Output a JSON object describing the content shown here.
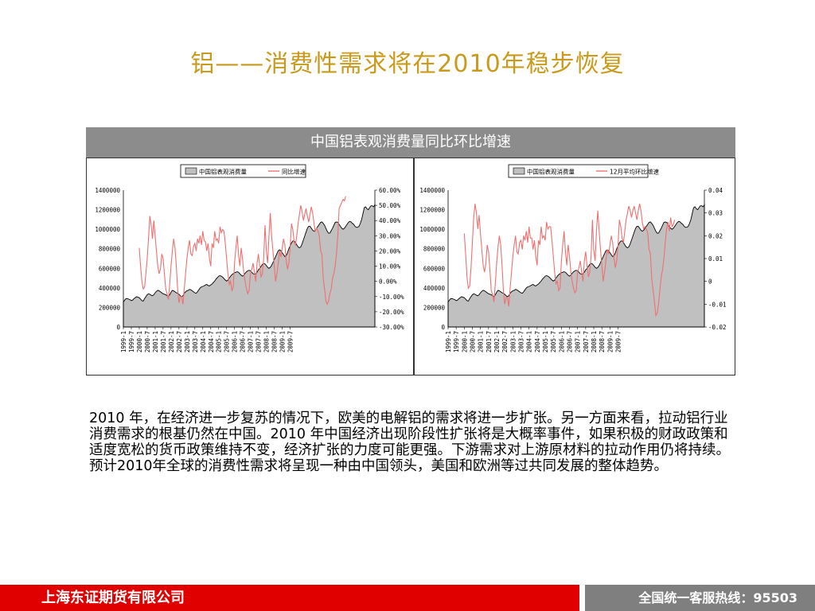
{
  "slide": {
    "title": "铝——消费性需求将在2010年稳步恢复",
    "panel_header": "中国铝表观消费量同比环比增速",
    "paragraph": " 2010 年，在经济进一步复苏的情况下，欧美的电解铝的需求将进一步扩张。另一方面来看，拉动铝行业消费需求的根基仍然在中国。2010 年中国经济出现阶段性扩张将是大概率事件，如果积极的财政政策和适度宽松的货币政策维持不变，经济扩张的力度可能更强。下游需求对上游原材料的拉动作用仍将持续。预计2010年全球的消费性需求将呈现一种由中国领头，美国和欧洲等过共同发展的整体趋势。",
    "footer_company": "上海东证期货有限公司",
    "footer_hotline": "全国统一客服热线：95503"
  },
  "colors": {
    "title": "#c99a1b",
    "header_bg": "#8c8c8c",
    "area_fill": "#c0c0c0",
    "line": "#f07070",
    "footer_red": "#e00000",
    "footer_gray": "#7f7f7f"
  },
  "chart_data": [
    {
      "type": "area",
      "legend": [
        "中国铝表观消费量",
        "同比增速"
      ],
      "legend_position": "top-center",
      "x_start": "1999-1",
      "x_ticks": [
        "1999-1",
        "1999-7",
        "2000-1",
        "2000-7",
        "2001-1",
        "2001-7",
        "2002-1",
        "2002-7",
        "2003-1",
        "2003-7",
        "2004-1",
        "2004-7",
        "2005-1",
        "2005-7",
        "2006-1",
        "2006-7",
        "2007-1",
        "2007-7",
        "2008-1",
        "2008-7",
        "2009-1",
        "2009-7"
      ],
      "y_left": {
        "min": 0,
        "max": 1400000,
        "ticks": [
          "0",
          "200000",
          "400000",
          "600000",
          "800000",
          "1000000",
          "1200000",
          "1400000"
        ]
      },
      "y_right": {
        "min": -0.3,
        "max": 0.6,
        "ticks": [
          "-30.00%",
          "-20.00%",
          "-10.00%",
          "0.00%",
          "10.00%",
          "20.00%",
          "30.00%",
          "40.00%",
          "50.00%",
          "60.00%"
        ]
      },
      "series": [
        {
          "name": "中国铝表观消费量",
          "axis": "left",
          "kind": "area",
          "values": [
            255000,
            275000,
            290000,
            290000,
            285000,
            280000,
            270000,
            275000,
            290000,
            300000,
            310000,
            305000,
            300000,
            285000,
            270000,
            265000,
            290000,
            310000,
            330000,
            340000,
            335000,
            325000,
            320000,
            330000,
            350000,
            365000,
            375000,
            370000,
            360000,
            350000,
            340000,
            335000,
            330000,
            320000,
            310000,
            330000,
            355000,
            375000,
            370000,
            360000,
            350000,
            345000,
            335000,
            320000,
            310000,
            320000,
            345000,
            360000,
            370000,
            375000,
            385000,
            380000,
            370000,
            360000,
            350000,
            345000,
            360000,
            380000,
            400000,
            410000,
            415000,
            420000,
            430000,
            435000,
            425000,
            420000,
            430000,
            440000,
            455000,
            470000,
            490000,
            505000,
            520000,
            525000,
            520000,
            510000,
            495000,
            480000,
            470000,
            480000,
            500000,
            520000,
            535000,
            545000,
            555000,
            560000,
            565000,
            560000,
            545000,
            530000,
            520000,
            530000,
            550000,
            565000,
            575000,
            580000,
            575000,
            560000,
            545000,
            540000,
            545000,
            560000,
            585000,
            600000,
            620000,
            640000,
            650000,
            645000,
            630000,
            610000,
            600000,
            610000,
            630000,
            660000,
            690000,
            720000,
            750000,
            780000,
            790000,
            780000,
            760000,
            740000,
            720000,
            730000,
            760000,
            800000,
            830000,
            860000,
            880000,
            880000,
            865000,
            840000,
            820000,
            810000,
            820000,
            850000,
            890000,
            930000,
            970000,
            1010000,
            1030000,
            1030000,
            1010000,
            990000,
            980000,
            990000,
            1010000,
            1030000,
            1050000,
            1070000,
            1075000,
            1060000,
            1040000,
            1010000,
            980000,
            960000,
            960000,
            985000,
            1010000,
            1040000,
            1070000,
            1075000,
            1070000,
            1050000,
            1030000,
            1010000,
            1000000,
            1010000,
            1030000,
            1050000,
            1070000,
            1080000,
            1075000,
            1060000,
            1050000,
            1030000,
            1020000,
            1020000,
            1030000,
            1060000,
            1100000,
            1160000,
            1220000,
            1230000,
            1210000,
            1200000,
            1220000,
            1240000,
            1240000,
            1230000,
            1250000
          ]
        },
        {
          "name": "同比增速",
          "axis": "right",
          "kind": "line",
          "x_offset": 12,
          "values": [
            0.22,
            0.1,
            0.0,
            -0.05,
            -0.04,
            0.05,
            0.15,
            0.28,
            0.43,
            0.37,
            0.28,
            0.4,
            0.3,
            0.2,
            0.1,
            0.05,
            0.08,
            0.18,
            0.15,
            0.05,
            -0.05,
            -0.08,
            -0.12,
            -0.02,
            0.1,
            0.2,
            0.28,
            0.22,
            0.1,
            -0.05,
            -0.14,
            -0.1,
            -0.1,
            -0.15,
            -0.05,
            0.05,
            0.15,
            0.22,
            0.27,
            0.18,
            0.17,
            0.23,
            0.25,
            0.2,
            0.28,
            0.25,
            0.3,
            0.24,
            0.33,
            0.27,
            0.26,
            0.2,
            0.25,
            0.15,
            0.1,
            0.25,
            0.22,
            0.33,
            0.27,
            0.28,
            0.25,
            0.36,
            0.32,
            0.34,
            0.33,
            0.25,
            0.15,
            0.05,
            -0.02,
            0.0,
            -0.06,
            -0.04,
            0.12,
            0.22,
            0.3,
            0.18,
            0.1,
            0.22,
            0.15,
            0.05,
            0.0,
            -0.05,
            -0.08,
            -0.06,
            0.05,
            0.08,
            0.12,
            0.06,
            0.0,
            0.12,
            0.18,
            0.1,
            0.03,
            0.05,
            0.15,
            0.37,
            0.2,
            0.12,
            0.3,
            0.45,
            0.3,
            0.2,
            0.1,
            0.0,
            0.05,
            0.12,
            0.2,
            0.16,
            0.22,
            0.28,
            0.24,
            0.14,
            0.08,
            0.12,
            0.22,
            0.38,
            0.34,
            0.26,
            0.24,
            0.3,
            0.38,
            0.44,
            0.5,
            0.46,
            0.4,
            0.44,
            0.48,
            0.43,
            0.39,
            0.44,
            0.49,
            0.45,
            0.38,
            0.33,
            0.35,
            0.33,
            0.3,
            0.2,
            0.18,
            0.02,
            -0.05,
            -0.13,
            -0.15,
            -0.13,
            -0.08,
            -0.05,
            0.02,
            0.05,
            0.1,
            0.18,
            0.3,
            0.48,
            0.5,
            0.52,
            0.54,
            0.53,
            0.56
          ]
        }
      ]
    },
    {
      "type": "area",
      "legend": [
        "中国铝表观消费量",
        "12月平均环比增速"
      ],
      "legend_position": "top-center",
      "x_start": "1999-1",
      "x_ticks": [
        "1999-1",
        "1999-7",
        "2000-1",
        "2000-7",
        "2001-1",
        "2001-7",
        "2002-1",
        "2002-7",
        "2003-1",
        "2003-7",
        "2004-1",
        "2004-7",
        "2005-1",
        "2005-7",
        "2006-1",
        "2006-7",
        "2007-1",
        "2007-7",
        "2008-1",
        "2008-7",
        "2009-1",
        "2009-7"
      ],
      "y_left": {
        "min": 0,
        "max": 1400000,
        "ticks": [
          "0",
          "200000",
          "400000",
          "600000",
          "800000",
          "1000000",
          "1200000",
          "1400000"
        ]
      },
      "y_right": {
        "min": -0.02,
        "max": 0.04,
        "ticks": [
          "-0.02",
          "-0.01",
          "0",
          "0.01",
          "0.02",
          "0.03",
          "0.04"
        ]
      },
      "series": [
        {
          "name": "中国铝表观消费量",
          "axis": "left",
          "kind": "area",
          "values": [
            255000,
            275000,
            290000,
            290000,
            285000,
            280000,
            270000,
            275000,
            290000,
            300000,
            310000,
            305000,
            300000,
            285000,
            270000,
            265000,
            290000,
            310000,
            330000,
            340000,
            335000,
            325000,
            320000,
            330000,
            350000,
            365000,
            375000,
            370000,
            360000,
            350000,
            340000,
            335000,
            330000,
            320000,
            310000,
            330000,
            355000,
            375000,
            370000,
            360000,
            350000,
            345000,
            335000,
            320000,
            310000,
            320000,
            345000,
            360000,
            370000,
            375000,
            385000,
            380000,
            370000,
            360000,
            350000,
            345000,
            360000,
            380000,
            400000,
            410000,
            415000,
            420000,
            430000,
            435000,
            425000,
            420000,
            430000,
            440000,
            455000,
            470000,
            490000,
            505000,
            520000,
            525000,
            520000,
            510000,
            495000,
            480000,
            470000,
            480000,
            500000,
            520000,
            535000,
            545000,
            555000,
            560000,
            565000,
            560000,
            545000,
            530000,
            520000,
            530000,
            550000,
            565000,
            575000,
            580000,
            575000,
            560000,
            545000,
            540000,
            545000,
            560000,
            585000,
            600000,
            620000,
            640000,
            650000,
            645000,
            630000,
            610000,
            600000,
            610000,
            630000,
            660000,
            690000,
            720000,
            750000,
            780000,
            790000,
            780000,
            760000,
            740000,
            720000,
            730000,
            760000,
            800000,
            830000,
            860000,
            880000,
            880000,
            865000,
            840000,
            820000,
            810000,
            820000,
            850000,
            890000,
            930000,
            970000,
            1010000,
            1030000,
            1030000,
            1010000,
            990000,
            980000,
            990000,
            1010000,
            1030000,
            1050000,
            1070000,
            1075000,
            1060000,
            1040000,
            1010000,
            980000,
            960000,
            960000,
            985000,
            1010000,
            1040000,
            1070000,
            1075000,
            1070000,
            1050000,
            1030000,
            1010000,
            1000000,
            1010000,
            1030000,
            1050000,
            1070000,
            1080000,
            1075000,
            1060000,
            1050000,
            1030000,
            1020000,
            1020000,
            1030000,
            1060000,
            1100000,
            1160000,
            1220000,
            1230000,
            1210000,
            1200000,
            1220000,
            1240000,
            1240000,
            1230000,
            1250000
          ]
        },
        {
          "name": "12月平均环比增速",
          "axis": "right",
          "kind": "line",
          "x_offset": 12,
          "values": [
            0.021,
            0.012,
            0.002,
            -0.003,
            -0.002,
            0.006,
            0.017,
            0.028,
            0.034,
            0.03,
            0.023,
            0.029,
            0.021,
            0.014,
            0.007,
            0.004,
            0.008,
            0.016,
            0.013,
            0.005,
            -0.004,
            -0.006,
            -0.009,
            -0.001,
            0.008,
            0.015,
            0.02,
            0.016,
            0.007,
            -0.004,
            -0.01,
            -0.007,
            -0.007,
            -0.011,
            -0.003,
            0.004,
            0.011,
            0.016,
            0.02,
            0.013,
            0.012,
            0.017,
            0.018,
            0.014,
            0.02,
            0.018,
            0.022,
            0.017,
            0.024,
            0.019,
            0.019,
            0.014,
            0.018,
            0.011,
            0.007,
            0.018,
            0.016,
            0.024,
            0.019,
            0.02,
            0.018,
            0.026,
            0.023,
            0.024,
            0.024,
            0.018,
            0.011,
            0.004,
            -0.001,
            0.0,
            -0.004,
            -0.003,
            0.009,
            0.016,
            0.022,
            0.013,
            0.007,
            0.016,
            0.011,
            0.004,
            0.0,
            -0.003,
            -0.005,
            -0.004,
            0.004,
            0.006,
            0.009,
            0.004,
            0.0,
            0.009,
            0.013,
            0.007,
            0.002,
            0.004,
            0.011,
            0.027,
            0.014,
            0.009,
            0.022,
            0.031,
            0.022,
            0.014,
            0.007,
            0.0,
            0.004,
            0.009,
            0.014,
            0.012,
            0.016,
            0.02,
            0.017,
            0.01,
            0.006,
            0.009,
            0.016,
            0.027,
            0.024,
            0.019,
            0.017,
            0.022,
            0.027,
            0.03,
            0.033,
            0.031,
            0.028,
            0.031,
            0.033,
            0.03,
            0.027,
            0.031,
            0.034,
            0.031,
            0.026,
            0.023,
            0.024,
            0.023,
            0.021,
            0.014,
            0.012,
            0.001,
            -0.004,
            -0.009,
            -0.015,
            -0.014,
            -0.01,
            -0.004,
            0.002,
            0.005,
            0.01,
            0.017,
            0.023,
            0.026,
            0.022,
            0.028,
            0.024,
            0.025,
            0.027
          ]
        }
      ]
    }
  ]
}
